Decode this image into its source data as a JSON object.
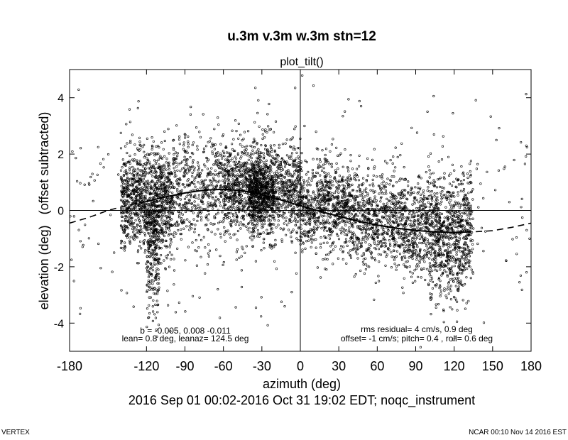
{
  "chart_data": {
    "type": "scatter",
    "title": "u.3m v.3m w.3m stn=12",
    "subtitle": "plot_tilt()",
    "xlabel": "azimuth (deg)",
    "ylabel": "elevation (deg)   (offset subtracted)",
    "xlim": [
      -180,
      180
    ],
    "ylim": [
      -5,
      5
    ],
    "x_ticks": [
      -180,
      -120,
      -90,
      -60,
      -30,
      0,
      30,
      60,
      90,
      120,
      150,
      180
    ],
    "y_ticks": [
      -4,
      -2,
      0,
      2,
      4
    ],
    "grid": false,
    "reference_lines": {
      "horizontal_y": 0,
      "vertical_x": 0
    },
    "annotations": {
      "fit_b": "b = -0.005, 0.008 -0.011",
      "lean": "lean= 0.8 deg, leanaz= 124.5 deg",
      "rms": "rms residual= 4 cm/s, 0.9 deg",
      "offsets": "offset= -1 cm/s; pitch= 0.4 , roll= 0.6 deg"
    },
    "time_range": "2016 Sep 01 00:02-2016 Oct 31 19:02 EDT; noqc_instrument",
    "fit_curve": {
      "description": "tilt fit, solid within data range, dashed outside",
      "solid_x_range": [
        -120,
        132
      ],
      "points": [
        [
          -180,
          -0.45
        ],
        [
          -165,
          -0.25
        ],
        [
          -150,
          0.0
        ],
        [
          -135,
          0.18
        ],
        [
          -120,
          0.32
        ],
        [
          -105,
          0.48
        ],
        [
          -90,
          0.62
        ],
        [
          -75,
          0.72
        ],
        [
          -60,
          0.75
        ],
        [
          -45,
          0.7
        ],
        [
          -30,
          0.56
        ],
        [
          -15,
          0.37
        ],
        [
          0,
          0.17
        ],
        [
          15,
          -0.03
        ],
        [
          30,
          -0.21
        ],
        [
          45,
          -0.38
        ],
        [
          60,
          -0.52
        ],
        [
          75,
          -0.63
        ],
        [
          90,
          -0.71
        ],
        [
          105,
          -0.76
        ],
        [
          120,
          -0.78
        ],
        [
          135,
          -0.76
        ],
        [
          150,
          -0.72
        ],
        [
          165,
          -0.6
        ],
        [
          180,
          -0.45
        ]
      ]
    },
    "clusters": [
      {
        "az": [
          -140,
          -100
        ],
        "el_mean": 0.3,
        "el_sd": 0.9,
        "n": 1100
      },
      {
        "az": [
          -120,
          -110
        ],
        "el_mean": -1.6,
        "el_sd": 1.1,
        "n": 220
      },
      {
        "az": [
          -100,
          -60
        ],
        "el_mean": 0.7,
        "el_sd": 1.0,
        "n": 500
      },
      {
        "az": [
          -60,
          0
        ],
        "el_mean": 0.75,
        "el_sd": 0.85,
        "n": 1300
      },
      {
        "az": [
          -40,
          -20
        ],
        "el_mean": 0.6,
        "el_sd": 0.6,
        "n": 500
      },
      {
        "az": [
          0,
          40
        ],
        "el_mean": 0.15,
        "el_sd": 0.8,
        "n": 750
      },
      {
        "az": [
          40,
          80
        ],
        "el_mean": -0.3,
        "el_sd": 0.8,
        "n": 650
      },
      {
        "az": [
          80,
          135
        ],
        "el_mean": -0.6,
        "el_sd": 0.9,
        "n": 950
      },
      {
        "az": [
          100,
          130
        ],
        "el_mean": -1.8,
        "el_sd": 1.0,
        "n": 220
      },
      {
        "az": [
          -180,
          180
        ],
        "el_mean": 0.2,
        "el_sd": 2.0,
        "n": 350
      }
    ]
  },
  "footer": {
    "left": "VERTEX",
    "right": "NCAR 00:10 Nov 14 2016 EST"
  }
}
